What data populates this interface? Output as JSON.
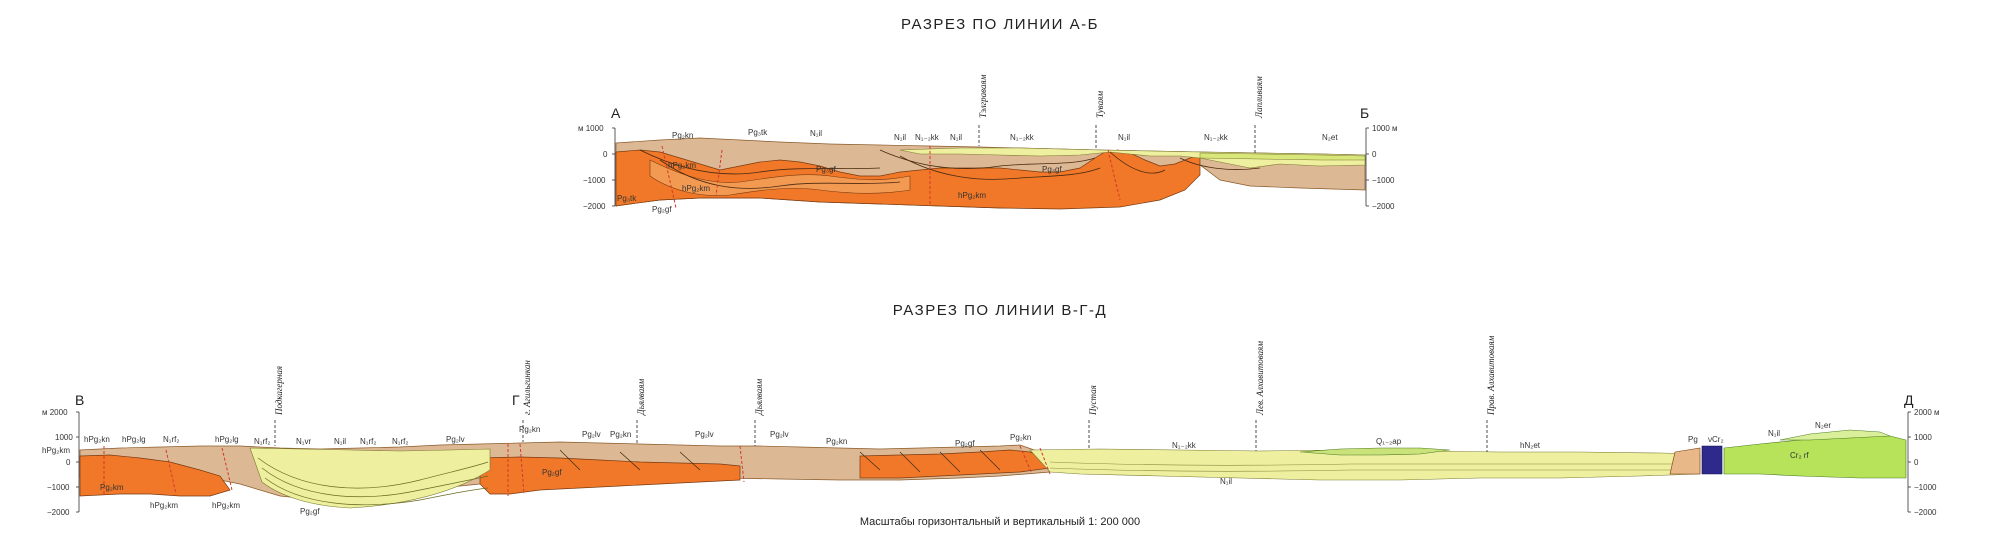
{
  "section_ab": {
    "title": "РАЗРЕЗ ПО ЛИНИИ А-Б",
    "end_left": "А",
    "end_right": "Б",
    "left_axis": [
      "м 1000",
      "0",
      "−1000",
      "−2000"
    ],
    "right_axis": [
      "1000 м",
      "0",
      "−1000",
      "−2000"
    ],
    "rivers": [
      "Тэлграваям",
      "Туваям",
      "Лапливаям"
    ],
    "labels": [
      "Pg₂kn",
      "Pg₃tk",
      "N₁il",
      "N₁il",
      "N₁₋₂kk",
      "N₁il",
      "N₁₋₂kk",
      "N₁il",
      "N₁₋₂kk",
      "N₂et",
      "hPg₂km",
      "hPg₂km",
      "Pg₃gf",
      "Pg₃gf",
      "hPg₂km",
      "Pg₃tk",
      "Pg₂gf"
    ]
  },
  "section_vgd": {
    "title": "РАЗРЕЗ ПО ЛИНИИ В-Г-Д",
    "end_left": "В",
    "end_mid": "Г",
    "end_right": "Д",
    "left_axis": [
      "м 2000",
      "1000",
      "0",
      "−1000",
      "−2000"
    ],
    "right_axis": [
      "2000 м",
      "1000",
      "0",
      "−1000",
      "−2000"
    ],
    "rivers": [
      "Подкагерная",
      "г. Агильгинкан",
      "Дьялваям",
      "Дьялваям",
      "Пустая",
      "Лев. Алхавитоваям",
      "Прав. Алхавитоваям"
    ],
    "labels": [
      "hPg₂kn",
      "hPg₂km",
      "hPg₂lg",
      "N₁rf₂",
      "hPg₂lg",
      "N₁rf₂",
      "N₁vr",
      "N₁il",
      "N₁rf₂",
      "N₁rf₂",
      "Pg₂lv",
      "Pg₂kn",
      "Pg₂lv",
      "Pg₂kn",
      "Pg₂lv",
      "Pg₂lv",
      "Pg₂kn",
      "Pg₂gf",
      "Pg₂kn",
      "N₁₋₂kk",
      "Q₁₋₂ap",
      "hN₂et",
      "Pg",
      "νCr₂",
      "N₁il",
      "N₂er",
      "Cr₂ rf",
      "Pg₂km",
      "hPg₂km",
      "hPg₂km",
      "Pg₂gf",
      "Pg₂gf",
      "N₁il"
    ]
  },
  "scale_caption": "Масштабы горизонтальный и вертикальный 1: 200 000",
  "colors": {
    "dark_orange": "#f07828",
    "light_orange": "#e9b888",
    "tan": "#ddb894",
    "pale_yellow": "#eef0a0",
    "yellow": "#e2e670",
    "green_yellow": "#c9e27a",
    "lime": "#b6e35a",
    "navy": "#2e2a8c",
    "fault_red": "#d23a2a"
  }
}
